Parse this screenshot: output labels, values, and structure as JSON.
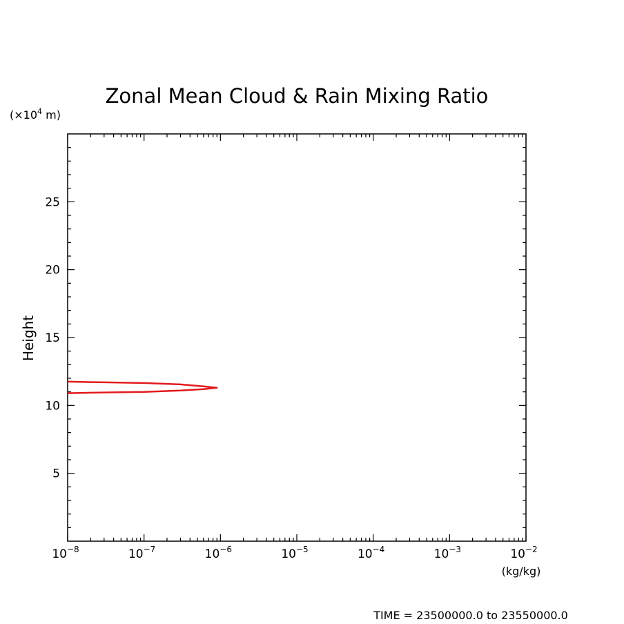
{
  "chart_data": {
    "type": "line",
    "title": "Zonal Mean Cloud & Rain Mixing Ratio",
    "ylabel": "Height",
    "y_unit_prefix": "(×10",
    "y_unit_exp": "4",
    "y_unit_suffix": " m)",
    "x_unit": "(kg/kg)",
    "xscale": "log",
    "xlim": [
      1e-08,
      0.01
    ],
    "ylim": [
      0,
      30
    ],
    "x_tick_base": "10",
    "x_ticks": [
      {
        "value": 1e-08,
        "exp": "−8"
      },
      {
        "value": 1e-07,
        "exp": "−7"
      },
      {
        "value": 1e-06,
        "exp": "−6"
      },
      {
        "value": 1e-05,
        "exp": "−5"
      },
      {
        "value": 0.0001,
        "exp": "−4"
      },
      {
        "value": 0.001,
        "exp": "−3"
      },
      {
        "value": 0.01,
        "exp": "−2"
      }
    ],
    "y_ticks": [
      5,
      10,
      15,
      20,
      25
    ],
    "y_tick_labels": [
      "5",
      "10",
      "15",
      "20",
      "25"
    ],
    "grid": false,
    "series": [
      {
        "color": "#e31a1c",
        "points": [
          {
            "x": 1e-08,
            "y": 10.9
          },
          {
            "x": 3e-08,
            "y": 10.95
          },
          {
            "x": 1e-07,
            "y": 11.0
          },
          {
            "x": 3e-07,
            "y": 11.1
          },
          {
            "x": 6e-07,
            "y": 11.2
          },
          {
            "x": 9e-07,
            "y": 11.3
          },
          {
            "x": 6e-07,
            "y": 11.4
          },
          {
            "x": 3e-07,
            "y": 11.55
          },
          {
            "x": 1e-07,
            "y": 11.65
          },
          {
            "x": 3e-08,
            "y": 11.7
          },
          {
            "x": 1e-08,
            "y": 11.75
          }
        ]
      }
    ]
  },
  "footer": {
    "time_label": "TIME = 23500000.0 to 23550000.0"
  }
}
